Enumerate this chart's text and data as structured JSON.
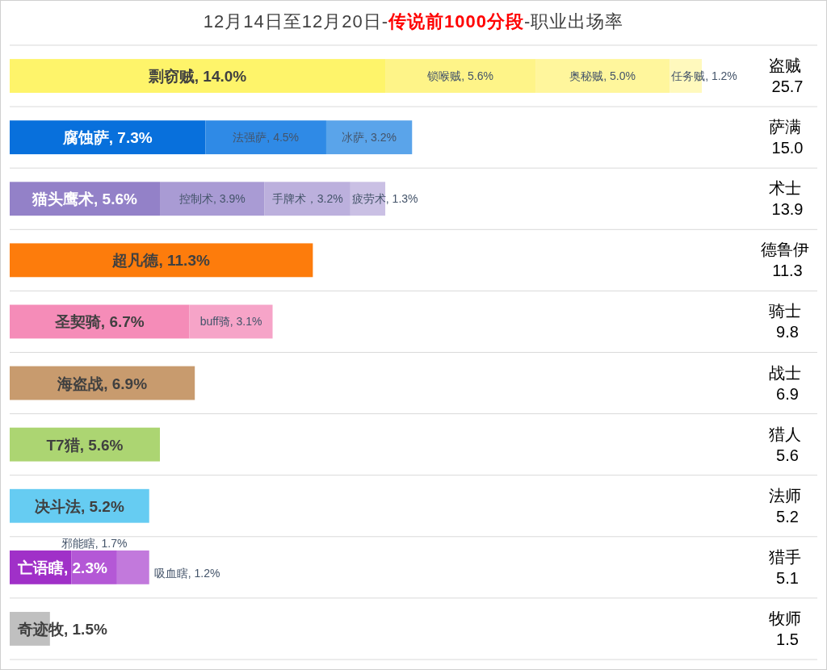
{
  "chart_data": {
    "type": "bar",
    "orientation": "horizontal",
    "stacked": true,
    "title": "12月14日至12月20日-传说前1000分段-职业出场率",
    "categories": [
      "盗贼\n25.7",
      "萨满\n15.0",
      "术士\n13.9",
      "德鲁伊\n11.3",
      "骑士\n9.8",
      "战士\n6.9",
      "猎人\n5.6",
      "法师\n5.2",
      "猎手\n5.1",
      "牧师\n1.5"
    ],
    "grid": "y",
    "series": [
      {
        "colors": [
          "#fef46a",
          "#0870dc",
          "#9381c8",
          "#fd7c0c",
          "#f58cb8",
          "#c89b6e",
          "#acd572",
          "#66ccf2",
          "#a030c8",
          "#c0c0c0"
        ],
        "values": [
          14.0,
          7.3,
          5.6,
          11.3,
          6.7,
          6.9,
          5.6,
          5.2,
          2.3,
          1.5
        ],
        "value_labels": [
          "剽窃贼, 14.0%",
          "腐蚀萨, 7.3%",
          "猫头鹰术, 5.6%",
          "超凡德, 11.3%",
          "圣契骑, 6.7%",
          "海盗战, 6.9%",
          "T7猎, 5.6%",
          "决斗法, 5.2%",
          "亡语瞎, 2.3%",
          "奇迹牧, 1.5%"
        ]
      },
      {
        "colors": [
          "#fef488",
          "#2f8ae6",
          "#a99bd4",
          null,
          "#f6a4c8",
          null,
          null,
          null,
          "#b458d6",
          null
        ],
        "values": [
          5.6,
          4.5,
          3.9,
          null,
          3.1,
          null,
          null,
          null,
          1.7,
          null
        ],
        "value_labels": [
          "锁喉贼, 5.6%",
          "法强萨, 4.5%",
          "控制术, 3.9%",
          null,
          "buff骑, 3.1%",
          null,
          null,
          null,
          "邪能瞎, 1.7%",
          null
        ]
      },
      {
        "colors": [
          "#fff69c",
          "#5aa4ea",
          "#bcb0dd",
          null,
          null,
          null,
          null,
          null,
          "#c279dc",
          null
        ],
        "values": [
          5.0,
          3.2,
          3.2,
          null,
          null,
          null,
          null,
          null,
          1.2,
          null
        ],
        "value_labels": [
          "奥秘贼, 5.0%",
          "冰萨, 3.2%",
          "手牌术，3.2%",
          null,
          null,
          null,
          null,
          null,
          "吸血瞎, 1.2%",
          null
        ]
      },
      {
        "colors": [
          "#fff9bd",
          null,
          "#cac0e4",
          null,
          null,
          null,
          null,
          null,
          null,
          null
        ],
        "values": [
          1.2,
          null,
          1.3,
          null,
          null,
          null,
          null,
          null,
          null,
          null
        ],
        "value_labels": [
          "任务贼, 1.2%",
          null,
          "疲劳术, 1.3%",
          null,
          null,
          null,
          null,
          null,
          null,
          null
        ]
      }
    ]
  }
}
